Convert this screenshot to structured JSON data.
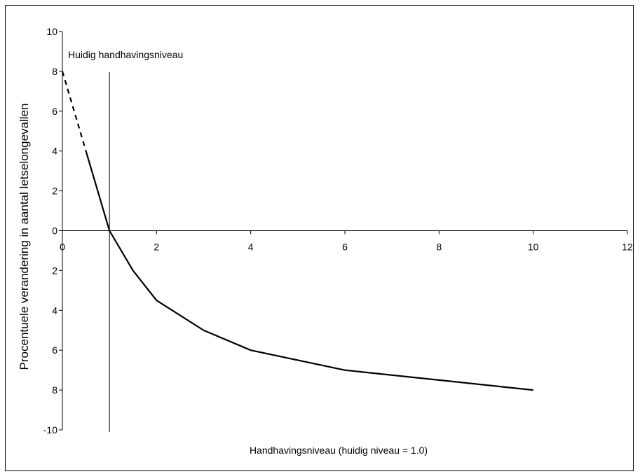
{
  "chart_data": {
    "type": "line",
    "title": "",
    "xlabel": "Handhavingsniveau (huidig niveau = 1.0)",
    "ylabel": "Procentuele verandering  in  aantal letselongevallen",
    "xlim": [
      0,
      12
    ],
    "ylim": [
      -10,
      10
    ],
    "x_ticks": [
      0,
      2,
      4,
      6,
      8,
      10,
      12
    ],
    "y_ticks": [
      10,
      8,
      6,
      4,
      2,
      0,
      -2,
      -4,
      -6,
      -8,
      -10
    ],
    "x_tick_labels": [
      "0",
      "2",
      "4",
      "6",
      "8",
      "10",
      "12"
    ],
    "y_tick_labels": [
      "10",
      "8",
      "6",
      "4",
      "2",
      "0",
      "2",
      "4",
      "6",
      "8",
      "-10"
    ],
    "grid": false,
    "legend": "none",
    "series": [
      {
        "style": "dashed",
        "x": [
          0,
          0.5
        ],
        "y": [
          8,
          4
        ]
      },
      {
        "style": "solid",
        "x": [
          0.5,
          1,
          1.5,
          2,
          3,
          4,
          6,
          10
        ],
        "y": [
          4,
          0,
          -2,
          -3.5,
          -5,
          -6,
          -7,
          -8
        ]
      }
    ],
    "reference_line": {
      "x": 1,
      "label": "Huidig handhavingsniveau"
    },
    "colors": {
      "line": "#000000",
      "axis": "#000000"
    }
  }
}
